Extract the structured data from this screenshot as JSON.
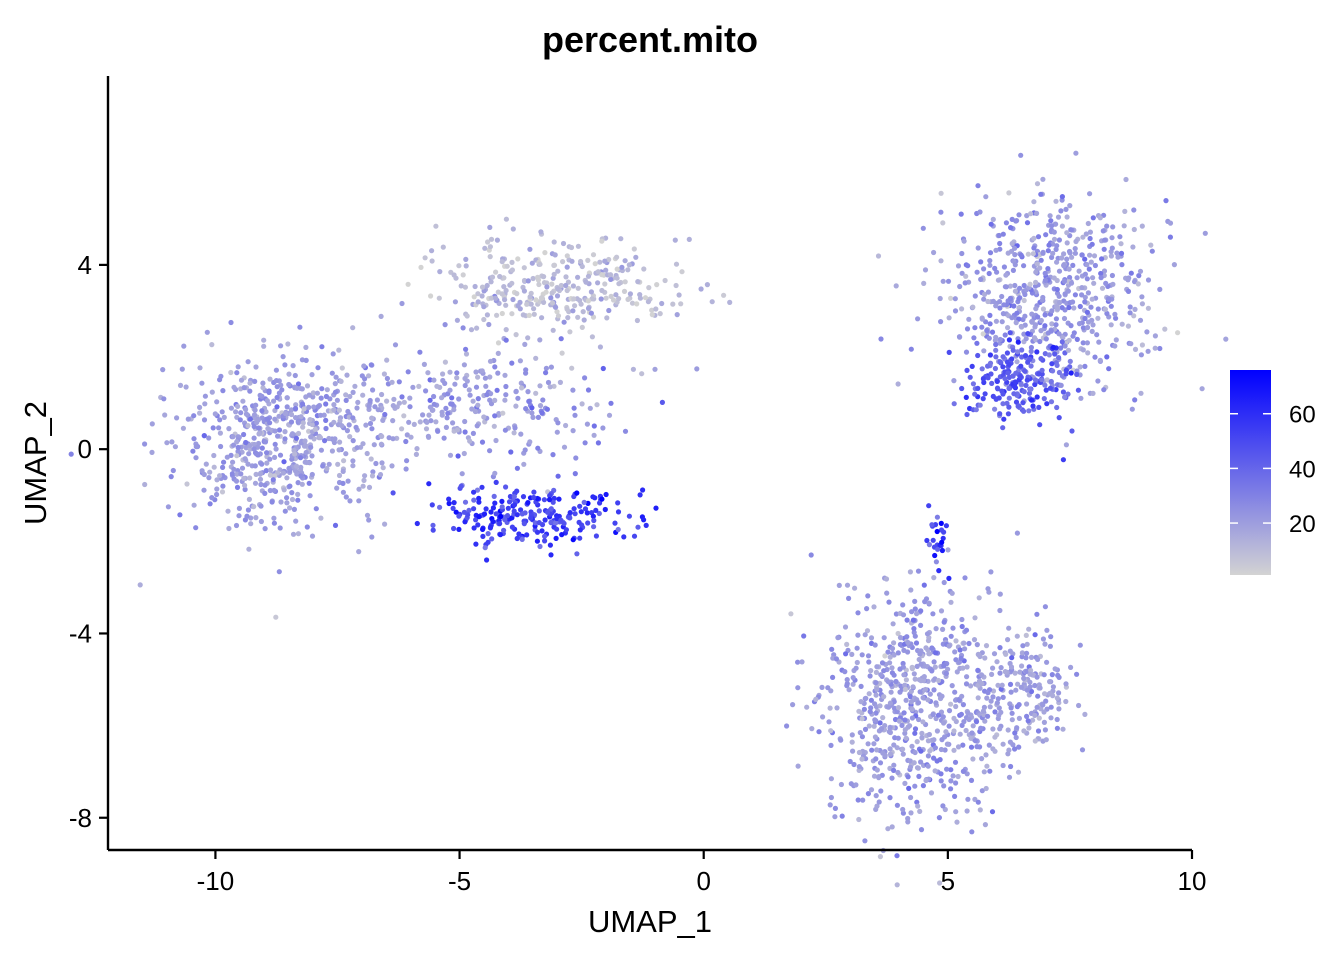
{
  "chart_data": {
    "type": "scatter",
    "title": "percent.mito",
    "xlabel": "UMAP_1",
    "ylabel": "UMAP_2",
    "xlim": [
      -12.2,
      10
    ],
    "ylim": [
      -8.7,
      8.1
    ],
    "xticks": [
      -10,
      -5,
      0,
      5,
      10
    ],
    "yticks": [
      -8,
      -4,
      0,
      4
    ],
    "grid": false,
    "legend": {
      "position": "right",
      "title": "",
      "ticks": [
        20,
        40,
        60
      ],
      "range": [
        1,
        76
      ],
      "low_color": "#d3d3d3",
      "high_color": "#0000ff"
    },
    "clusters": [
      {
        "name": "left-mass",
        "cx": -8.7,
        "cy": 0.2,
        "sx": 1.05,
        "sy": 0.9,
        "n": 620,
        "value_mean": 20,
        "value_sd": 6
      },
      {
        "name": "left-top-arm",
        "cx": -3.1,
        "cy": 3.5,
        "sx": 1.2,
        "sy": 0.55,
        "n": 330,
        "value_mean": 10,
        "value_sd": 6
      },
      {
        "name": "left-bridge",
        "cx": -5.6,
        "cy": 1.1,
        "sx": 1.2,
        "sy": 0.55,
        "n": 170,
        "value_mean": 19,
        "value_sd": 5
      },
      {
        "name": "left-center-sparse",
        "cx": -3.8,
        "cy": 0.8,
        "sx": 1.1,
        "sy": 0.8,
        "n": 130,
        "value_mean": 24,
        "value_sd": 8
      },
      {
        "name": "left-high-arc",
        "cx": -3.6,
        "cy": -1.45,
        "sx": 1.05,
        "sy": 0.3,
        "n": 240,
        "value_mean": 52,
        "value_sd": 10
      },
      {
        "name": "top-right",
        "cx": 7.1,
        "cy": 3.4,
        "sx": 1.05,
        "sy": 1.05,
        "n": 620,
        "value_mean": 21,
        "value_sd": 7
      },
      {
        "name": "top-right-high",
        "cx": 6.4,
        "cy": 1.5,
        "sx": 0.55,
        "sy": 0.45,
        "n": 200,
        "value_mean": 44,
        "value_sd": 9
      },
      {
        "name": "bottom-right",
        "cx": 4.3,
        "cy": -5.5,
        "sx": 0.95,
        "sy": 1.25,
        "n": 700,
        "value_mean": 21,
        "value_sd": 6
      },
      {
        "name": "bottom-right-arm",
        "cx": 6.6,
        "cy": -5.3,
        "sx": 0.55,
        "sy": 0.65,
        "n": 180,
        "value_mean": 21,
        "value_sd": 6
      },
      {
        "name": "bottom-right-spike",
        "cx": 4.8,
        "cy": -2.1,
        "sx": 0.12,
        "sy": 0.4,
        "n": 25,
        "value_mean": 55,
        "value_sd": 12
      }
    ]
  }
}
